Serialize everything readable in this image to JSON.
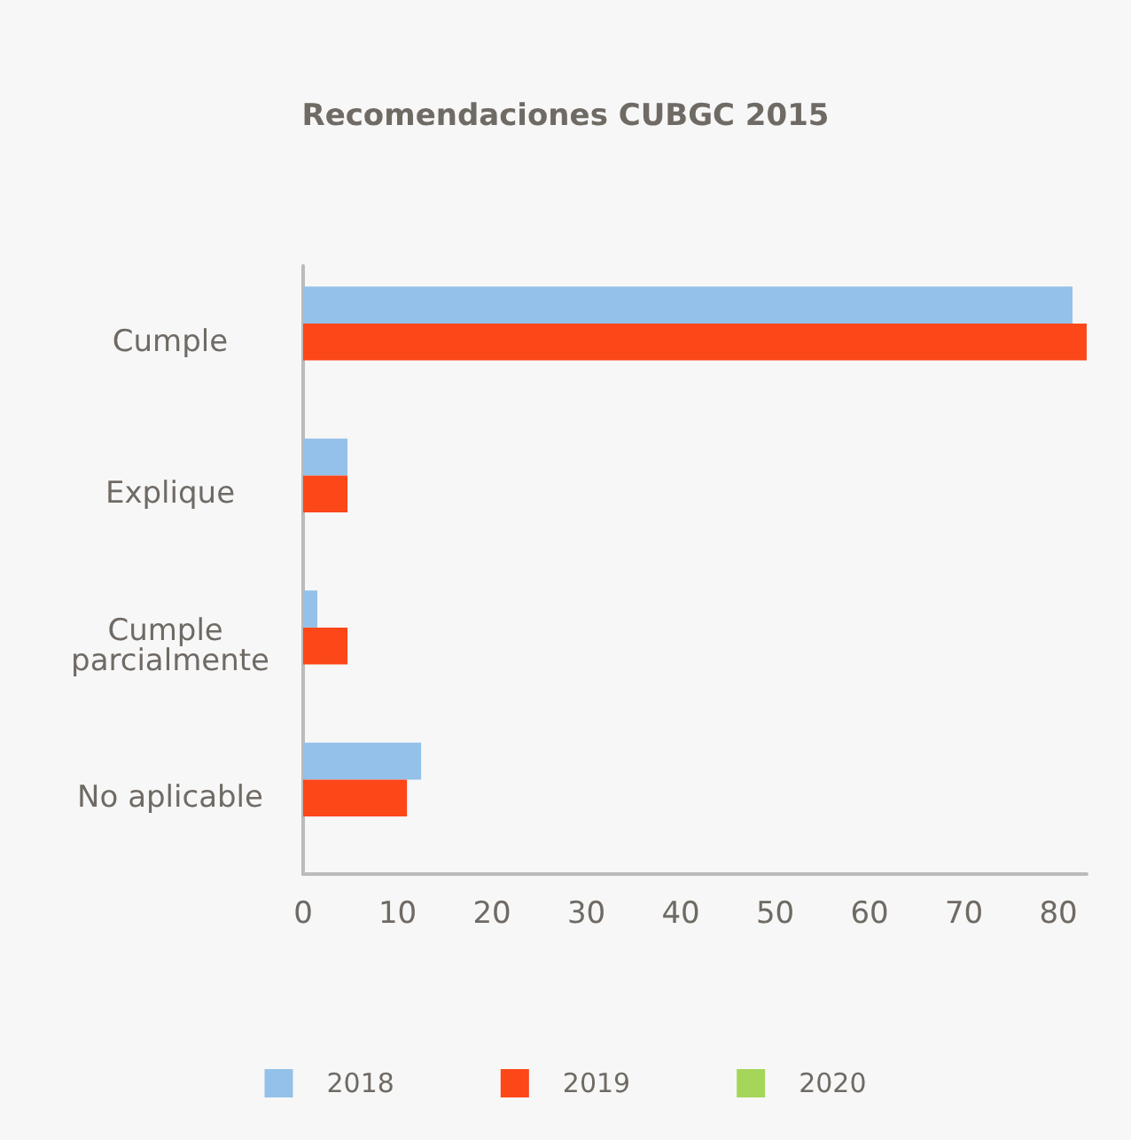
{
  "chart_data": {
    "type": "bar",
    "orientation": "horizontal",
    "title": "Recomendaciones CUBGC 2015",
    "categories": [
      "Cumple",
      "Explique",
      "Cumple parcialmente",
      "No aplicable"
    ],
    "series": [
      {
        "name": "2018",
        "color": "#93c1e9",
        "values": [
          81.5,
          4.7,
          1.5,
          12.5
        ]
      },
      {
        "name": "2019",
        "color": "#fc4719",
        "values": [
          83,
          4.7,
          4.7,
          11
        ]
      },
      {
        "name": "2020",
        "color": "#a5d65a",
        "values": [
          null,
          null,
          null,
          null
        ]
      }
    ],
    "xlim": [
      0,
      83
    ],
    "xticks": [
      0,
      10,
      20,
      30,
      40,
      50,
      60,
      70,
      80
    ],
    "grid": false,
    "legend": "bottom"
  }
}
